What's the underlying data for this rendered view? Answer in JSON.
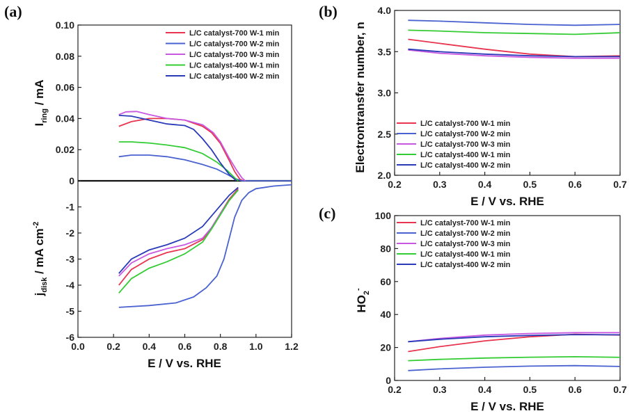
{
  "colors": [
    "#e8344e",
    "#4a62d0",
    "#c858e0",
    "#33cc33",
    "#2a3ab8"
  ],
  "chart_data": [
    {
      "id": "a",
      "panel_label": "(a)",
      "type": "line",
      "xlabel": "E / V vs. RHE",
      "ylabel_top": {
        "main": "I",
        "sub": "ring",
        "rest": " / mA"
      },
      "ylabel_bottom": {
        "main": "j",
        "sub": "disk",
        "rest": " / mA cm",
        "sup": "-2"
      },
      "xlim": [
        0.0,
        1.2
      ],
      "xticks": [
        "0.0",
        "0.2",
        "0.4",
        "0.6",
        "0.8",
        "1.0",
        "1.2"
      ],
      "ylim_top": [
        0,
        0.1
      ],
      "yticks_top": [
        "0",
        "0.02",
        "0.04",
        "0.06",
        "0.08",
        "0.10"
      ],
      "ylim_bottom": [
        -6,
        0
      ],
      "yticks_bottom": [
        "-6",
        "-5",
        "-4",
        "-3",
        "-2",
        "-1"
      ],
      "legend_position": "top-right",
      "series": [
        {
          "name": "L/C catalyst-700 W-1 min",
          "ring": [
            [
              0.23,
              0.035
            ],
            [
              0.3,
              0.038
            ],
            [
              0.4,
              0.04
            ],
            [
              0.5,
              0.04
            ],
            [
              0.6,
              0.039
            ],
            [
              0.7,
              0.035
            ],
            [
              0.75,
              0.031
            ],
            [
              0.8,
              0.024
            ],
            [
              0.85,
              0.013
            ],
            [
              0.88,
              0.006
            ],
            [
              0.91,
              0.001
            ],
            [
              0.93,
              0.0
            ]
          ],
          "disk": [
            [
              0.23,
              -4.0
            ],
            [
              0.3,
              -3.4
            ],
            [
              0.4,
              -3.0
            ],
            [
              0.5,
              -2.75
            ],
            [
              0.6,
              -2.6
            ],
            [
              0.7,
              -2.25
            ],
            [
              0.75,
              -1.8
            ],
            [
              0.8,
              -1.25
            ],
            [
              0.85,
              -0.7
            ],
            [
              0.9,
              -0.3
            ]
          ]
        },
        {
          "name": "L/C catalyst-700 W-2 min",
          "ring": [
            [
              0.23,
              0.0155
            ],
            [
              0.3,
              0.0165
            ],
            [
              0.4,
              0.0165
            ],
            [
              0.5,
              0.0155
            ],
            [
              0.6,
              0.0135
            ],
            [
              0.7,
              0.0105
            ],
            [
              0.78,
              0.0075
            ],
            [
              0.84,
              0.004
            ],
            [
              0.88,
              0.0015
            ],
            [
              0.92,
              0.0
            ],
            [
              1.0,
              0.0
            ],
            [
              1.2,
              0.0
            ]
          ],
          "disk": [
            [
              0.23,
              -4.85
            ],
            [
              0.4,
              -4.78
            ],
            [
              0.55,
              -4.68
            ],
            [
              0.65,
              -4.45
            ],
            [
              0.72,
              -4.1
            ],
            [
              0.78,
              -3.65
            ],
            [
              0.82,
              -3.0
            ],
            [
              0.85,
              -2.2
            ],
            [
              0.88,
              -1.4
            ],
            [
              0.92,
              -0.75
            ],
            [
              0.96,
              -0.45
            ],
            [
              1.0,
              -0.3
            ],
            [
              1.1,
              -0.2
            ],
            [
              1.2,
              -0.15
            ]
          ]
        },
        {
          "name": "L/C catalyst-700 W-3 min",
          "ring": [
            [
              0.23,
              0.0425
            ],
            [
              0.27,
              0.0443
            ],
            [
              0.33,
              0.0445
            ],
            [
              0.4,
              0.0425
            ],
            [
              0.5,
              0.04
            ],
            [
              0.6,
              0.039
            ],
            [
              0.7,
              0.036
            ],
            [
              0.76,
              0.031
            ],
            [
              0.8,
              0.025
            ],
            [
              0.85,
              0.0145
            ],
            [
              0.89,
              0.007
            ],
            [
              0.92,
              0.002
            ],
            [
              0.94,
              0.0
            ]
          ],
          "disk": [
            [
              0.23,
              -3.65
            ],
            [
              0.3,
              -3.15
            ],
            [
              0.4,
              -2.8
            ],
            [
              0.5,
              -2.6
            ],
            [
              0.6,
              -2.45
            ],
            [
              0.7,
              -2.2
            ],
            [
              0.75,
              -1.8
            ],
            [
              0.8,
              -1.25
            ],
            [
              0.85,
              -0.75
            ],
            [
              0.9,
              -0.35
            ]
          ]
        },
        {
          "name": "L/C catalyst-400 W-1 min",
          "ring": [
            [
              0.23,
              0.025
            ],
            [
              0.3,
              0.025
            ],
            [
              0.4,
              0.0243
            ],
            [
              0.5,
              0.023
            ],
            [
              0.6,
              0.0213
            ],
            [
              0.7,
              0.0175
            ],
            [
              0.78,
              0.012
            ],
            [
              0.84,
              0.0065
            ],
            [
              0.88,
              0.002
            ],
            [
              0.9,
              0.0
            ]
          ],
          "disk": [
            [
              0.23,
              -4.3
            ],
            [
              0.3,
              -3.75
            ],
            [
              0.4,
              -3.35
            ],
            [
              0.5,
              -3.1
            ],
            [
              0.6,
              -2.8
            ],
            [
              0.7,
              -2.35
            ],
            [
              0.75,
              -1.85
            ],
            [
              0.8,
              -1.3
            ],
            [
              0.85,
              -0.75
            ],
            [
              0.9,
              -0.35
            ]
          ]
        },
        {
          "name": "L/C catalyst-400 W-2 min",
          "ring": [
            [
              0.23,
              0.042
            ],
            [
              0.3,
              0.0415
            ],
            [
              0.4,
              0.039
            ],
            [
              0.5,
              0.0365
            ],
            [
              0.6,
              0.0355
            ],
            [
              0.65,
              0.033
            ],
            [
              0.7,
              0.027
            ],
            [
              0.75,
              0.02
            ],
            [
              0.8,
              0.0115
            ],
            [
              0.85,
              0.004
            ],
            [
              0.89,
              0.0
            ]
          ],
          "disk": [
            [
              0.23,
              -3.55
            ],
            [
              0.3,
              -3.0
            ],
            [
              0.4,
              -2.65
            ],
            [
              0.5,
              -2.45
            ],
            [
              0.6,
              -2.2
            ],
            [
              0.7,
              -1.75
            ],
            [
              0.75,
              -1.35
            ],
            [
              0.8,
              -0.95
            ],
            [
              0.85,
              -0.55
            ],
            [
              0.9,
              -0.25
            ]
          ]
        }
      ]
    },
    {
      "id": "b",
      "panel_label": "(b)",
      "type": "line",
      "xlabel": "E / V vs. RHE",
      "ylabel": "Electrontransfer number, n",
      "xlim": [
        0.2,
        0.7
      ],
      "xticks": [
        "0.2",
        "0.3",
        "0.4",
        "0.5",
        "0.6",
        "0.7"
      ],
      "ylim": [
        2.0,
        4.0
      ],
      "yticks": [
        "2.0",
        "2.5",
        "3.0",
        "3.5",
        "4.0"
      ],
      "legend_position": "bottom-left",
      "series": [
        {
          "name": "L/C catalyst-700 W-1 min",
          "points": [
            [
              0.23,
              3.65
            ],
            [
              0.3,
              3.6
            ],
            [
              0.4,
              3.53
            ],
            [
              0.5,
              3.47
            ],
            [
              0.6,
              3.44
            ],
            [
              0.7,
              3.45
            ]
          ]
        },
        {
          "name": "L/C catalyst-700 W-2 min",
          "points": [
            [
              0.23,
              3.88
            ],
            [
              0.3,
              3.87
            ],
            [
              0.4,
              3.85
            ],
            [
              0.5,
              3.83
            ],
            [
              0.6,
              3.82
            ],
            [
              0.7,
              3.83
            ]
          ]
        },
        {
          "name": "L/C catalyst-700 W-3 min",
          "points": [
            [
              0.23,
              3.52
            ],
            [
              0.3,
              3.48
            ],
            [
              0.4,
              3.45
            ],
            [
              0.5,
              3.43
            ],
            [
              0.6,
              3.42
            ],
            [
              0.7,
              3.42
            ]
          ]
        },
        {
          "name": "L/C catalyst-400 W-1 min",
          "points": [
            [
              0.23,
              3.76
            ],
            [
              0.3,
              3.75
            ],
            [
              0.4,
              3.73
            ],
            [
              0.5,
              3.72
            ],
            [
              0.6,
              3.71
            ],
            [
              0.7,
              3.73
            ]
          ]
        },
        {
          "name": "L/C catalyst-400 W-2 min",
          "points": [
            [
              0.23,
              3.53
            ],
            [
              0.3,
              3.5
            ],
            [
              0.4,
              3.47
            ],
            [
              0.5,
              3.45
            ],
            [
              0.6,
              3.44
            ],
            [
              0.7,
              3.44
            ]
          ]
        }
      ]
    },
    {
      "id": "c",
      "panel_label": "(c)",
      "type": "line",
      "xlabel": "E / V vs. RHE",
      "ylabel": {
        "main": "HO",
        "sub": "2",
        "sup": "-"
      },
      "xlim": [
        0.2,
        0.7
      ],
      "xticks": [
        "0.2",
        "0.3",
        "0.4",
        "0.5",
        "0.6",
        "0.7"
      ],
      "ylim": [
        0,
        100
      ],
      "yticks": [
        "0",
        "20",
        "40",
        "60",
        "80",
        "100"
      ],
      "legend_position": "top-left",
      "series": [
        {
          "name": "L/C catalyst-700 W-1 min",
          "points": [
            [
              0.23,
              17.5
            ],
            [
              0.3,
              20.5
            ],
            [
              0.4,
              24
            ],
            [
              0.5,
              26.5
            ],
            [
              0.6,
              28
            ],
            [
              0.7,
              27.5
            ]
          ]
        },
        {
          "name": "L/C catalyst-700 W-2 min",
          "points": [
            [
              0.23,
              6
            ],
            [
              0.3,
              7
            ],
            [
              0.4,
              8
            ],
            [
              0.5,
              8.7
            ],
            [
              0.6,
              9
            ],
            [
              0.7,
              8.5
            ]
          ]
        },
        {
          "name": "L/C catalyst-700 W-3 min",
          "points": [
            [
              0.23,
              23.5
            ],
            [
              0.3,
              25.5
            ],
            [
              0.4,
              27.5
            ],
            [
              0.5,
              28.5
            ],
            [
              0.6,
              29
            ],
            [
              0.7,
              29
            ]
          ]
        },
        {
          "name": "L/C catalyst-400 W-1 min",
          "points": [
            [
              0.23,
              12
            ],
            [
              0.3,
              12.8
            ],
            [
              0.4,
              13.6
            ],
            [
              0.5,
              14.1
            ],
            [
              0.6,
              14.4
            ],
            [
              0.7,
              14
            ]
          ]
        },
        {
          "name": "L/C catalyst-400 W-2 min",
          "points": [
            [
              0.23,
              23.5
            ],
            [
              0.3,
              25
            ],
            [
              0.4,
              26.5
            ],
            [
              0.5,
              27.3
            ],
            [
              0.6,
              27.8
            ],
            [
              0.7,
              27.7
            ]
          ]
        }
      ]
    }
  ]
}
